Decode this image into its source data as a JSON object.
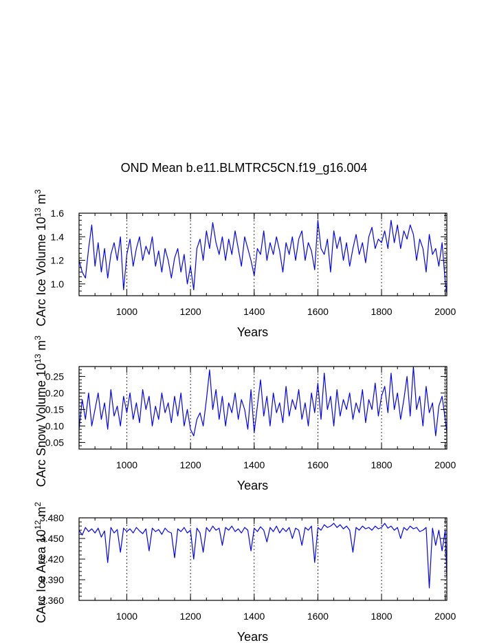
{
  "title": "OND Mean b.e11.BLMTRC5CN.f19_g16.004",
  "chart_data": [
    {
      "type": "line",
      "xlabel": "Years",
      "ylabel_main": "CArc Ice Volume 10",
      "ylabel_exp": "13",
      "ylabel_unit": " m",
      "ylabel_unit_exp": "3",
      "xlim": [
        850,
        2005
      ],
      "ylim": [
        0.9,
        1.6
      ],
      "xticks": [
        1000,
        1200,
        1400,
        1600,
        1800,
        2000
      ],
      "xtick_labels": [
        "1000",
        "1200",
        "1400",
        "1600",
        "1800",
        "2000"
      ],
      "yticks": [
        1.0,
        1.2,
        1.4,
        1.6
      ],
      "ytick_labels": [
        "1.0",
        "1.2",
        "1.4",
        "1.6"
      ],
      "color": "#0000ff",
      "series": {
        "name": "CArc Ice Volume",
        "x": [
          850,
          860,
          870,
          880,
          890,
          900,
          910,
          920,
          930,
          940,
          950,
          960,
          970,
          980,
          990,
          1000,
          1010,
          1020,
          1030,
          1040,
          1050,
          1060,
          1070,
          1080,
          1090,
          1100,
          1110,
          1120,
          1130,
          1140,
          1150,
          1160,
          1170,
          1180,
          1190,
          1200,
          1210,
          1220,
          1230,
          1240,
          1250,
          1260,
          1270,
          1280,
          1290,
          1300,
          1310,
          1320,
          1330,
          1340,
          1350,
          1360,
          1370,
          1380,
          1390,
          1400,
          1410,
          1420,
          1430,
          1440,
          1450,
          1460,
          1470,
          1480,
          1490,
          1500,
          1510,
          1520,
          1530,
          1540,
          1550,
          1560,
          1570,
          1580,
          1590,
          1600,
          1610,
          1620,
          1630,
          1640,
          1650,
          1660,
          1670,
          1680,
          1690,
          1700,
          1710,
          1720,
          1730,
          1740,
          1750,
          1760,
          1770,
          1780,
          1790,
          1800,
          1810,
          1820,
          1830,
          1840,
          1850,
          1860,
          1870,
          1880,
          1890,
          1900,
          1910,
          1920,
          1930,
          1940,
          1950,
          1960,
          1970,
          1980,
          1990,
          2000,
          2005
        ],
        "y": [
          1.2,
          1.1,
          1.05,
          1.3,
          1.5,
          1.15,
          1.35,
          1.1,
          1.3,
          1.05,
          1.25,
          1.35,
          1.2,
          1.4,
          0.95,
          1.25,
          1.38,
          1.15,
          1.3,
          1.4,
          1.2,
          1.32,
          1.25,
          1.4,
          1.15,
          1.28,
          1.1,
          1.3,
          1.2,
          1.05,
          1.22,
          1.3,
          1.1,
          1.25,
          1.0,
          1.15,
          0.95,
          1.3,
          1.38,
          1.2,
          1.45,
          1.3,
          1.52,
          1.35,
          1.25,
          1.4,
          1.2,
          1.38,
          1.25,
          1.45,
          1.3,
          1.15,
          1.4,
          1.3,
          1.2,
          1.07,
          1.3,
          1.25,
          1.45,
          1.2,
          1.35,
          1.25,
          1.4,
          1.28,
          1.1,
          1.35,
          1.25,
          1.4,
          1.2,
          1.38,
          1.45,
          1.2,
          1.35,
          1.28,
          1.12,
          1.54,
          1.3,
          1.25,
          1.38,
          1.1,
          1.45,
          1.3,
          1.4,
          1.2,
          1.35,
          1.15,
          1.3,
          1.42,
          1.25,
          1.35,
          1.18,
          1.4,
          1.48,
          1.3,
          1.38,
          1.35,
          1.45,
          1.3,
          1.54,
          1.35,
          1.5,
          1.3,
          1.45,
          1.38,
          1.5,
          1.42,
          1.2,
          1.38,
          1.3,
          1.1,
          1.42,
          1.25,
          1.3,
          1.15,
          1.35,
          1.02,
          0.92
        ],
        "y_tick_density_note": "values estimated from plot"
      }
    },
    {
      "type": "line",
      "xlabel": "Years",
      "ylabel_main": "CArc Snow Volume 10",
      "ylabel_exp": "13",
      "ylabel_unit": " m",
      "ylabel_unit_exp": "3",
      "xlim": [
        850,
        2005
      ],
      "ylim": [
        0.03,
        0.28
      ],
      "xticks": [
        1000,
        1200,
        1400,
        1600,
        1800,
        2000
      ],
      "xtick_labels": [
        "1000",
        "1200",
        "1400",
        "1600",
        "1800",
        "2000"
      ],
      "yticks": [
        0.05,
        0.1,
        0.15,
        0.2,
        0.25
      ],
      "ytick_labels": [
        "0.05",
        "0.10",
        "0.15",
        "0.20",
        "0.25"
      ],
      "color": "#0000ff",
      "series": {
        "name": "CArc Snow Volume",
        "x": [
          850,
          860,
          870,
          880,
          890,
          900,
          910,
          920,
          930,
          940,
          950,
          960,
          970,
          980,
          990,
          1000,
          1010,
          1020,
          1030,
          1040,
          1050,
          1060,
          1070,
          1080,
          1090,
          1100,
          1110,
          1120,
          1130,
          1140,
          1150,
          1160,
          1170,
          1180,
          1190,
          1200,
          1210,
          1220,
          1230,
          1240,
          1250,
          1260,
          1270,
          1280,
          1290,
          1300,
          1310,
          1320,
          1330,
          1340,
          1350,
          1360,
          1370,
          1380,
          1390,
          1400,
          1410,
          1420,
          1430,
          1440,
          1450,
          1460,
          1470,
          1480,
          1490,
          1500,
          1510,
          1520,
          1530,
          1540,
          1550,
          1560,
          1570,
          1580,
          1590,
          1600,
          1610,
          1620,
          1630,
          1640,
          1650,
          1660,
          1670,
          1680,
          1690,
          1700,
          1710,
          1720,
          1730,
          1740,
          1750,
          1760,
          1770,
          1780,
          1790,
          1800,
          1810,
          1820,
          1830,
          1840,
          1850,
          1860,
          1870,
          1880,
          1890,
          1900,
          1910,
          1920,
          1930,
          1940,
          1950,
          1960,
          1970,
          1980,
          1990,
          2000,
          2005
        ],
        "y": [
          0.09,
          0.18,
          0.12,
          0.2,
          0.1,
          0.15,
          0.2,
          0.12,
          0.17,
          0.09,
          0.21,
          0.13,
          0.16,
          0.1,
          0.19,
          0.14,
          0.2,
          0.12,
          0.17,
          0.11,
          0.21,
          0.15,
          0.19,
          0.1,
          0.16,
          0.12,
          0.2,
          0.14,
          0.17,
          0.11,
          0.19,
          0.13,
          0.2,
          0.1,
          0.15,
          0.09,
          0.07,
          0.12,
          0.14,
          0.1,
          0.18,
          0.27,
          0.15,
          0.21,
          0.12,
          0.19,
          0.1,
          0.17,
          0.14,
          0.2,
          0.12,
          0.18,
          0.15,
          0.09,
          0.21,
          0.08,
          0.16,
          0.24,
          0.13,
          0.19,
          0.1,
          0.2,
          0.14,
          0.17,
          0.11,
          0.22,
          0.13,
          0.18,
          0.15,
          0.21,
          0.12,
          0.17,
          0.1,
          0.2,
          0.14,
          0.23,
          0.12,
          0.26,
          0.15,
          0.19,
          0.1,
          0.21,
          0.13,
          0.18,
          0.15,
          0.2,
          0.12,
          0.17,
          0.14,
          0.21,
          0.11,
          0.18,
          0.15,
          0.23,
          0.13,
          0.19,
          0.22,
          0.14,
          0.26,
          0.15,
          0.2,
          0.12,
          0.18,
          0.25,
          0.13,
          0.28,
          0.15,
          0.19,
          0.1,
          0.22,
          0.14,
          0.17,
          0.07,
          0.16,
          0.19,
          0.12,
          0.08
        ],
        "y_tick_density_note": "values estimated from plot"
      }
    },
    {
      "type": "line",
      "xlabel": "Years",
      "ylabel_main": "CArc Ice Area 10",
      "ylabel_exp": "12",
      "ylabel_unit": " m",
      "ylabel_unit_exp": "2",
      "xlim": [
        850,
        2005
      ],
      "ylim": [
        3.36,
        3.48
      ],
      "xticks": [
        1000,
        1200,
        1400,
        1600,
        1800,
        2000
      ],
      "xtick_labels": [
        "1000",
        "1200",
        "1400",
        "1600",
        "1800",
        "2000"
      ],
      "yticks": [
        3.36,
        3.39,
        3.42,
        3.45,
        3.48
      ],
      "ytick_labels": [
        "3.360",
        "3.390",
        "3.420",
        "3.450",
        "3.480"
      ],
      "color": "#0000ff",
      "series": {
        "name": "CArc Ice Area",
        "x": [
          850,
          860,
          870,
          880,
          890,
          900,
          910,
          920,
          930,
          940,
          950,
          960,
          970,
          980,
          990,
          1000,
          1010,
          1020,
          1030,
          1040,
          1050,
          1060,
          1070,
          1080,
          1090,
          1100,
          1110,
          1120,
          1130,
          1140,
          1150,
          1160,
          1170,
          1180,
          1190,
          1200,
          1210,
          1220,
          1230,
          1240,
          1250,
          1260,
          1270,
          1280,
          1290,
          1300,
          1310,
          1320,
          1330,
          1340,
          1350,
          1360,
          1370,
          1380,
          1390,
          1400,
          1410,
          1420,
          1430,
          1440,
          1450,
          1460,
          1470,
          1480,
          1490,
          1500,
          1510,
          1520,
          1530,
          1540,
          1550,
          1560,
          1570,
          1580,
          1590,
          1600,
          1610,
          1620,
          1630,
          1640,
          1650,
          1660,
          1670,
          1680,
          1690,
          1700,
          1710,
          1720,
          1730,
          1740,
          1750,
          1760,
          1770,
          1780,
          1790,
          1800,
          1810,
          1820,
          1830,
          1840,
          1850,
          1860,
          1870,
          1880,
          1890,
          1900,
          1910,
          1920,
          1930,
          1940,
          1950,
          1960,
          1970,
          1980,
          1990,
          2000,
          2005
        ],
        "y": [
          3.462,
          3.455,
          3.466,
          3.46,
          3.464,
          3.458,
          3.465,
          3.452,
          3.461,
          3.415,
          3.466,
          3.458,
          3.463,
          3.43,
          3.465,
          3.46,
          3.464,
          3.458,
          3.466,
          3.461,
          3.457,
          3.464,
          3.432,
          3.465,
          3.46,
          3.463,
          3.456,
          3.465,
          3.46,
          3.458,
          3.422,
          3.464,
          3.46,
          3.466,
          3.458,
          3.462,
          3.42,
          3.465,
          3.458,
          3.43,
          3.466,
          3.46,
          3.468,
          3.462,
          3.465,
          3.44,
          3.466,
          3.462,
          3.468,
          3.46,
          3.464,
          3.458,
          3.466,
          3.462,
          3.432,
          3.465,
          3.46,
          3.467,
          3.462,
          3.445,
          3.466,
          3.46,
          3.468,
          3.458,
          3.465,
          3.46,
          3.466,
          3.45,
          3.465,
          3.462,
          3.44,
          3.466,
          3.462,
          3.468,
          3.415,
          3.466,
          3.462,
          3.47,
          3.466,
          3.468,
          3.472,
          3.466,
          3.47,
          3.464,
          3.468,
          3.462,
          3.43,
          3.466,
          3.462,
          3.468,
          3.464,
          3.466,
          3.462,
          3.468,
          3.464,
          3.466,
          3.472,
          3.465,
          3.468,
          3.462,
          3.466,
          3.45,
          3.466,
          3.462,
          3.468,
          3.464,
          3.466,
          3.46,
          3.462,
          3.466,
          3.378,
          3.465,
          3.44,
          3.462,
          3.432,
          3.462,
          3.392
        ],
        "y_tick_density_note": "values estimated from plot"
      }
    }
  ]
}
